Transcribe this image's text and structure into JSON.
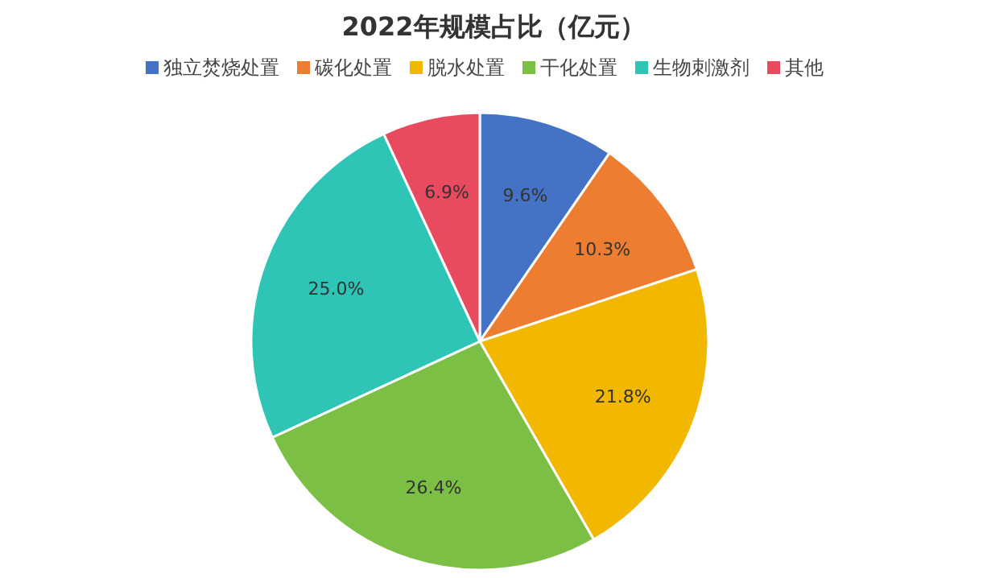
{
  "chart_data": {
    "type": "pie",
    "title": "2022年规模占比（亿元）",
    "categories": [
      "独立焚烧处置",
      "碳化处置",
      "脱水处置",
      "干化处置",
      "生物刺激剂",
      "其他"
    ],
    "values": [
      9.6,
      10.3,
      21.8,
      26.4,
      25.0,
      6.9
    ],
    "value_labels": [
      "9.6%",
      "10.3%",
      "21.8%",
      "26.4%",
      "25.0%",
      "6.9%"
    ],
    "colors": [
      "#4472c4",
      "#ed7d31",
      "#f2b800",
      "#7bbf44",
      "#2ec4b6",
      "#e84a5f"
    ],
    "legend": "top"
  }
}
